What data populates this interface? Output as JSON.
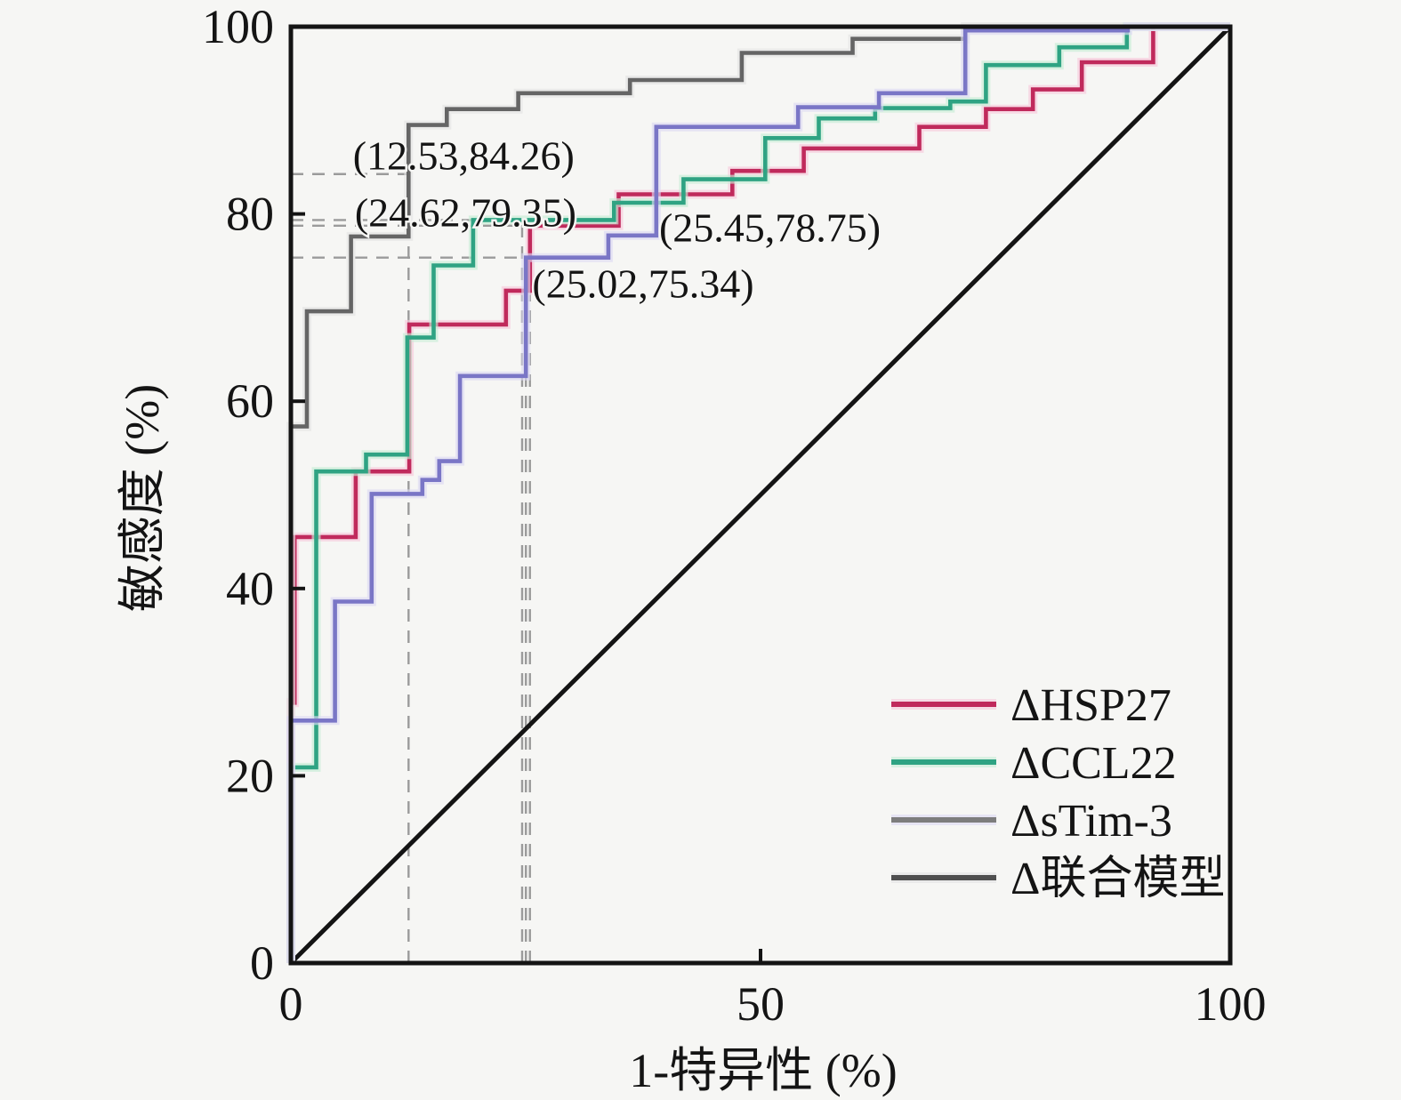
{
  "chart_data": {
    "type": "line",
    "subtype": "roc_step_curves",
    "title": "",
    "xlabel": "1-特异性 (%)",
    "ylabel": "敏感度 (%)",
    "xlim": [
      0,
      100
    ],
    "ylim": [
      0,
      100
    ],
    "xticks": [
      0,
      50,
      100
    ],
    "yticks": [
      0,
      20,
      40,
      60,
      80,
      100
    ],
    "grid": false,
    "background_color": "#f6f6f4",
    "axis_color": "#141414",
    "guide_line_color": "#9b9b9b",
    "reference_diagonal": {
      "from": [
        0,
        0
      ],
      "to": [
        100,
        100
      ],
      "color": "#141414"
    },
    "legend_position": "lower-right",
    "series": [
      {
        "name": "ΔHSP27",
        "color": "#c02a5c",
        "halo_color": "#f7c9db",
        "legend_color": "#c02a5c",
        "points": [
          [
            0,
            0
          ],
          [
            0,
            27.8
          ],
          [
            0.4,
            27.8
          ],
          [
            0.4,
            45.5
          ],
          [
            6.9,
            45.5
          ],
          [
            6.9,
            52.5
          ],
          [
            12.6,
            52.5
          ],
          [
            12.6,
            68.2
          ],
          [
            22.9,
            68.2
          ],
          [
            22.9,
            71.8
          ],
          [
            25.45,
            71.8
          ],
          [
            25.45,
            78.75
          ],
          [
            34.9,
            78.75
          ],
          [
            34.9,
            82.1
          ],
          [
            47,
            82.1
          ],
          [
            47,
            84.6
          ],
          [
            54.6,
            84.6
          ],
          [
            54.6,
            87
          ],
          [
            66.9,
            87
          ],
          [
            66.9,
            89.3
          ],
          [
            74,
            89.3
          ],
          [
            74,
            91.2
          ],
          [
            79,
            91.2
          ],
          [
            79,
            93.3
          ],
          [
            84.2,
            93.3
          ],
          [
            84.2,
            96.2
          ],
          [
            91.8,
            96.2
          ],
          [
            91.8,
            100
          ],
          [
            100,
            100
          ]
        ]
      },
      {
        "name": "ΔCCL22",
        "color": "#2fa383",
        "halo_color": "#c6edd6",
        "legend_color": "#2fa383",
        "points": [
          [
            0,
            0
          ],
          [
            0,
            20.9
          ],
          [
            2.7,
            20.9
          ],
          [
            2.7,
            52.5
          ],
          [
            8,
            52.5
          ],
          [
            8,
            54.3
          ],
          [
            12.4,
            54.3
          ],
          [
            12.4,
            66.8
          ],
          [
            15.2,
            66.8
          ],
          [
            15.2,
            74.5
          ],
          [
            19.4,
            74.5
          ],
          [
            19.4,
            79.35
          ],
          [
            24.62,
            79.35
          ],
          [
            34.4,
            79.35
          ],
          [
            34.4,
            81.2
          ],
          [
            41.8,
            81.2
          ],
          [
            41.8,
            83.7
          ],
          [
            50.5,
            83.7
          ],
          [
            50.5,
            88.1
          ],
          [
            56.2,
            88.1
          ],
          [
            56.2,
            90.2
          ],
          [
            62.2,
            90.2
          ],
          [
            62.2,
            91.3
          ],
          [
            70.2,
            91.3
          ],
          [
            70.2,
            92
          ],
          [
            74,
            92
          ],
          [
            74,
            95.9
          ],
          [
            81.8,
            95.9
          ],
          [
            81.8,
            97.8
          ],
          [
            89,
            97.8
          ],
          [
            89,
            100
          ],
          [
            100,
            100
          ]
        ]
      },
      {
        "name": "ΔsTim-3",
        "color": "#7a76c6",
        "halo_color": "#dcd9f2",
        "legend_color": "#7d7d7d",
        "points": [
          [
            0,
            0
          ],
          [
            0,
            25.9
          ],
          [
            4.7,
            25.9
          ],
          [
            4.7,
            38.6
          ],
          [
            8.6,
            38.6
          ],
          [
            8.6,
            50.1
          ],
          [
            14,
            50.1
          ],
          [
            14,
            51.6
          ],
          [
            15.8,
            51.6
          ],
          [
            15.8,
            53.6
          ],
          [
            18,
            53.6
          ],
          [
            18,
            62.7
          ],
          [
            25.02,
            62.7
          ],
          [
            25.02,
            75.34
          ],
          [
            33.8,
            75.34
          ],
          [
            33.8,
            77.7
          ],
          [
            38.9,
            77.7
          ],
          [
            38.9,
            89.3
          ],
          [
            54,
            89.3
          ],
          [
            54,
            91.4
          ],
          [
            62.6,
            91.4
          ],
          [
            62.6,
            92.9
          ],
          [
            71.8,
            92.9
          ],
          [
            71.8,
            99.6
          ],
          [
            89.1,
            99.6
          ],
          [
            89.1,
            100
          ],
          [
            100,
            100
          ]
        ]
      },
      {
        "name": "Δ联合模型",
        "color": "#656565",
        "halo_color": "#e3e3e3",
        "legend_color": "#4f4f4f",
        "points": [
          [
            0,
            0
          ],
          [
            0,
            57.3
          ],
          [
            1.7,
            57.3
          ],
          [
            1.7,
            69.6
          ],
          [
            6.4,
            69.6
          ],
          [
            6.4,
            77.6
          ],
          [
            12.53,
            77.6
          ],
          [
            12.53,
            89.5
          ],
          [
            16.6,
            89.5
          ],
          [
            16.6,
            91.2
          ],
          [
            24.2,
            91.2
          ],
          [
            24.2,
            92.9
          ],
          [
            36.1,
            92.9
          ],
          [
            36.1,
            94.3
          ],
          [
            48,
            94.3
          ],
          [
            48,
            97.2
          ],
          [
            59.8,
            97.2
          ],
          [
            59.8,
            98.7
          ],
          [
            71.8,
            98.7
          ],
          [
            71.8,
            100
          ],
          [
            100,
            100
          ]
        ]
      }
    ],
    "annotations": [
      {
        "label": "(12.53,84.26)",
        "x": 12.53,
        "y": 84.26,
        "label_at": [
          18.4,
          86.3
        ]
      },
      {
        "label": "(24.62,79.35)",
        "x": 24.62,
        "y": 79.35,
        "label_at": [
          18.6,
          80.2
        ]
      },
      {
        "label": "(25.45,78.75)",
        "x": 25.45,
        "y": 78.75,
        "label_at": [
          51.0,
          78.6
        ]
      },
      {
        "label": "(25.02,75.34)",
        "x": 25.02,
        "y": 75.34,
        "label_at": [
          37.5,
          72.6
        ]
      }
    ]
  }
}
